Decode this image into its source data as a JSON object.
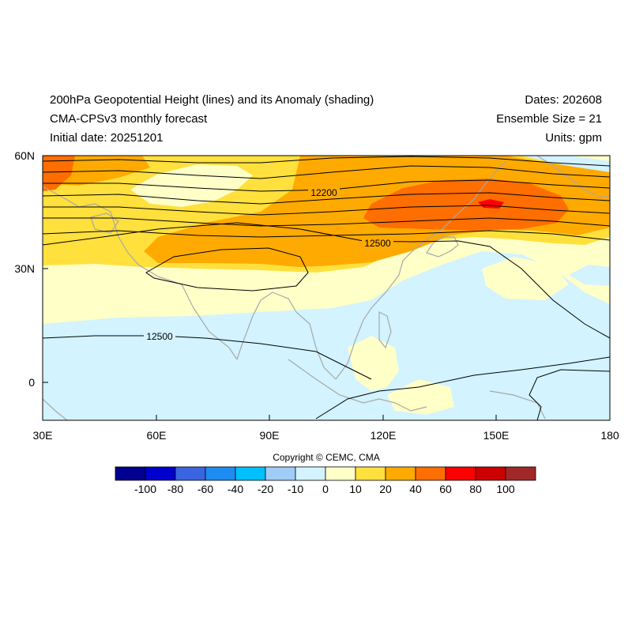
{
  "header": {
    "title_line1": "200hPa Geopotential Height (lines) and its Anomaly (shading)",
    "title_line2": "CMA-CPSv3 monthly forecast",
    "title_line3": "Initial date: 20251201",
    "dates": "Dates: 202608",
    "ensemble": "Ensemble Size = 21",
    "units": "Units: gpm"
  },
  "map": {
    "lon_ticks": [
      "30E",
      "60E",
      "90E",
      "120E",
      "150E",
      "180"
    ],
    "lat_ticks": [
      "60N",
      "30N",
      "0"
    ],
    "contour_labels": [
      "12200",
      "12500",
      "12500"
    ]
  },
  "colorbar": {
    "labels": [
      "-100",
      "-80",
      "-60",
      "-40",
      "-20",
      "-10",
      "0",
      "10",
      "20",
      "40",
      "60",
      "80",
      "100"
    ],
    "colors": [
      "#00008f",
      "#0000cd",
      "#3b64e0",
      "#1e8cf0",
      "#00bfff",
      "#a0cdf8",
      "#d2f3ff",
      "#ffffc8",
      "#ffe03c",
      "#ffaa00",
      "#ff6e00",
      "#ff0000",
      "#cd0000",
      "#a02828"
    ]
  },
  "footer": {
    "copyright": "Copyright © CEMC, CMA"
  }
}
